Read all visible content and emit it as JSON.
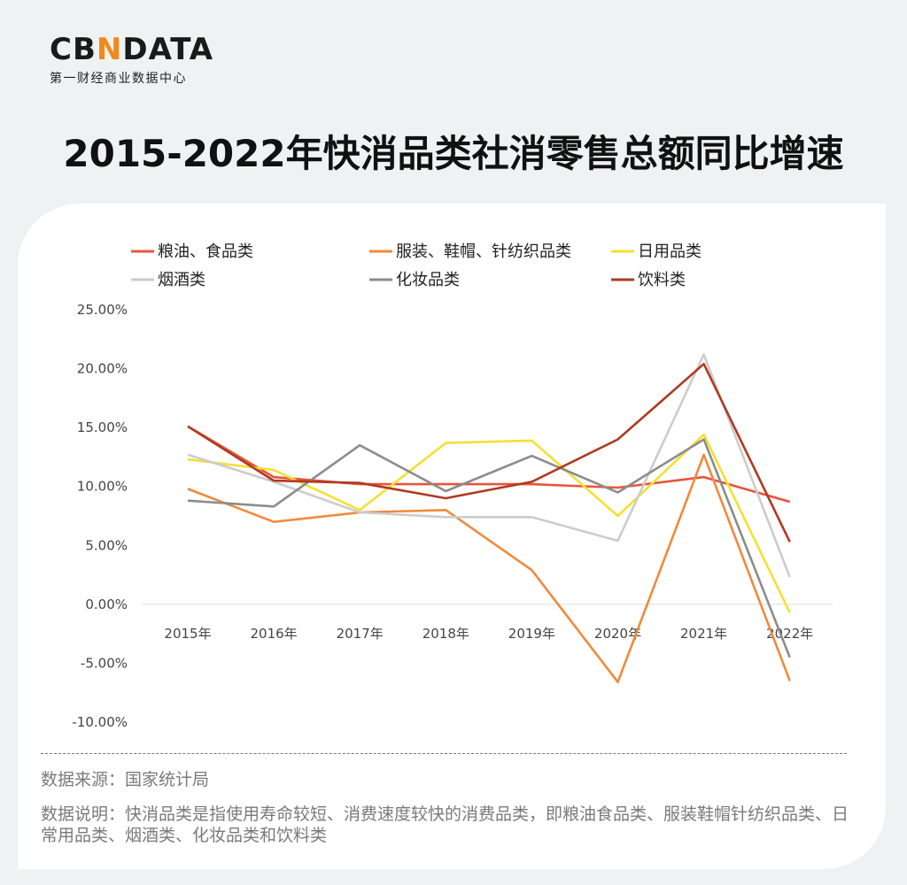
{
  "brand": {
    "logo_prefix": "CB",
    "logo_accent": "N",
    "logo_suffix": "DATA",
    "tagline": "第一财经商业数据中心"
  },
  "title": "2015-2022年快消品类社消零售总额同比增速",
  "footer": {
    "source": "数据来源：国家统计局",
    "description": "数据说明：快消品类是指使用寿命较短、消费速度较快的消费品类，即粮油食品类、服装鞋帽针纺织品类、日常用品类、烟酒类、化妆品类和饮料类"
  },
  "chart_data": {
    "type": "line",
    "x": [
      "2015年",
      "2016年",
      "2017年",
      "2018年",
      "2019年",
      "2020年",
      "2021年",
      "2022年"
    ],
    "y_ticks": [
      "25.00%",
      "20.00%",
      "15.00%",
      "10.00%",
      "5.00%",
      "0.00%",
      "-5.00%",
      "-10.00%"
    ],
    "ylim": [
      -10,
      25
    ],
    "y_unit": "%",
    "grid": false,
    "legend_position": "top",
    "series": [
      {
        "name": "粮油、食品类",
        "color": "#e8553a",
        "values": [
          15.1,
          10.8,
          10.2,
          10.2,
          10.2,
          9.9,
          10.8,
          8.7
        ]
      },
      {
        "name": "服装、鞋帽、针纺织品类",
        "color": "#f08a3c",
        "values": [
          9.8,
          7.0,
          7.8,
          8.0,
          2.9,
          -6.6,
          12.7,
          -6.5
        ]
      },
      {
        "name": "日用品类",
        "color": "#f5e032",
        "values": [
          12.3,
          11.4,
          8.0,
          13.7,
          13.9,
          7.5,
          14.4,
          -0.7
        ]
      },
      {
        "name": "烟酒类",
        "color": "#cccccc",
        "values": [
          12.7,
          10.4,
          7.8,
          7.4,
          7.4,
          5.4,
          21.2,
          2.3
        ]
      },
      {
        "name": "化妆品类",
        "color": "#8c8c8c",
        "values": [
          8.8,
          8.3,
          13.5,
          9.6,
          12.6,
          9.5,
          14.0,
          -4.5
        ]
      },
      {
        "name": "饮料类",
        "color": "#b03a22",
        "values": [
          15.1,
          10.5,
          10.3,
          9.0,
          10.4,
          14.0,
          20.4,
          5.3
        ]
      }
    ]
  }
}
